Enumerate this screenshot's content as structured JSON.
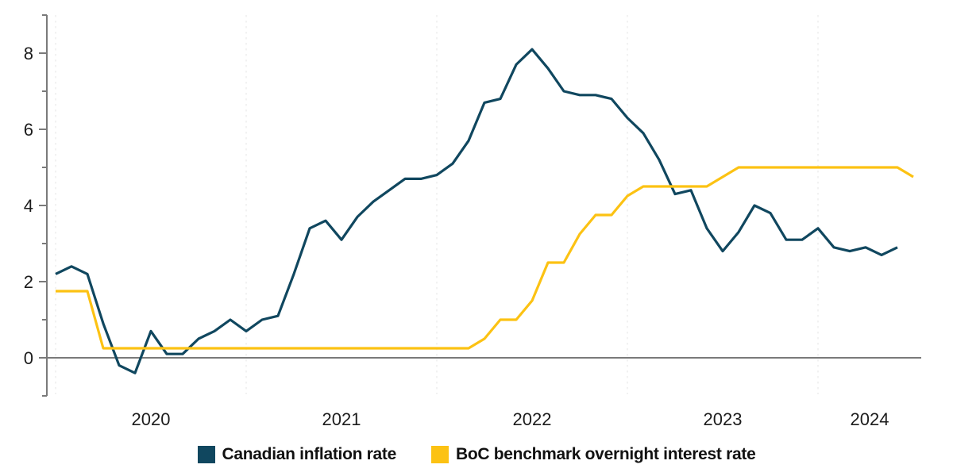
{
  "chart_data": {
    "type": "line",
    "title": "",
    "frequency": "monthly",
    "months": [
      "2019-12",
      "2020-01",
      "2020-02",
      "2020-03",
      "2020-04",
      "2020-05",
      "2020-06",
      "2020-07",
      "2020-08",
      "2020-09",
      "2020-10",
      "2020-11",
      "2020-12",
      "2021-01",
      "2021-02",
      "2021-03",
      "2021-04",
      "2021-05",
      "2021-06",
      "2021-07",
      "2021-08",
      "2021-09",
      "2021-10",
      "2021-11",
      "2021-12",
      "2022-01",
      "2022-02",
      "2022-03",
      "2022-04",
      "2022-05",
      "2022-06",
      "2022-07",
      "2022-08",
      "2022-09",
      "2022-10",
      "2022-11",
      "2022-12",
      "2023-01",
      "2023-02",
      "2023-03",
      "2023-04",
      "2023-05",
      "2023-06",
      "2023-07",
      "2023-08",
      "2023-09",
      "2023-10",
      "2023-11",
      "2023-12",
      "2024-01",
      "2024-02",
      "2024-03",
      "2024-04",
      "2024-05",
      "2024-06"
    ],
    "series": [
      {
        "name": "Canadian inflation rate",
        "slug": "canadian-inflation-rate-line",
        "color": "#10475f",
        "values": [
          2.2,
          2.4,
          2.2,
          0.9,
          -0.2,
          -0.4,
          0.7,
          0.1,
          0.1,
          0.5,
          0.7,
          1.0,
          0.7,
          1.0,
          1.1,
          2.2,
          3.4,
          3.6,
          3.1,
          3.7,
          4.1,
          4.4,
          4.7,
          4.7,
          4.8,
          5.1,
          5.7,
          6.7,
          6.8,
          7.7,
          8.1,
          7.6,
          7.0,
          6.9,
          6.9,
          6.8,
          6.3,
          5.9,
          5.2,
          4.3,
          4.4,
          3.4,
          2.8,
          3.3,
          4.0,
          3.8,
          3.1,
          3.1,
          3.4,
          2.9,
          2.8,
          2.9,
          2.7,
          2.9,
          null
        ]
      },
      {
        "name": "BoC benchmark overnight interest rate",
        "slug": "boc-overnight-rate-line",
        "color": "#fcc213",
        "values": [
          1.75,
          1.75,
          1.75,
          0.25,
          0.25,
          0.25,
          0.25,
          0.25,
          0.25,
          0.25,
          0.25,
          0.25,
          0.25,
          0.25,
          0.25,
          0.25,
          0.25,
          0.25,
          0.25,
          0.25,
          0.25,
          0.25,
          0.25,
          0.25,
          0.25,
          0.25,
          0.25,
          0.5,
          1.0,
          1.0,
          1.5,
          2.5,
          2.5,
          3.25,
          3.75,
          3.75,
          4.25,
          4.5,
          4.5,
          4.5,
          4.5,
          4.5,
          4.75,
          5.0,
          5.0,
          5.0,
          5.0,
          5.0,
          5.0,
          5.0,
          5.0,
          5.0,
          5.0,
          5.0,
          4.75
        ]
      }
    ],
    "ylim": [
      -1,
      9
    ],
    "y_tick_labels": [
      "0",
      "2",
      "4",
      "6",
      "8"
    ],
    "y_tick_values": [
      0,
      2,
      4,
      6,
      8
    ],
    "y_minor_tick_values": [
      -1,
      1,
      3,
      5,
      7,
      9
    ],
    "x_tick_labels": [
      "2020",
      "2021",
      "2022",
      "2023",
      "2024"
    ],
    "grid": "vertical dashed lines at each January",
    "grid_color": "#ededed",
    "axis_color": "#7a7a7a",
    "text_color": "#1c1c1c",
    "legend_position": "bottom-center"
  }
}
